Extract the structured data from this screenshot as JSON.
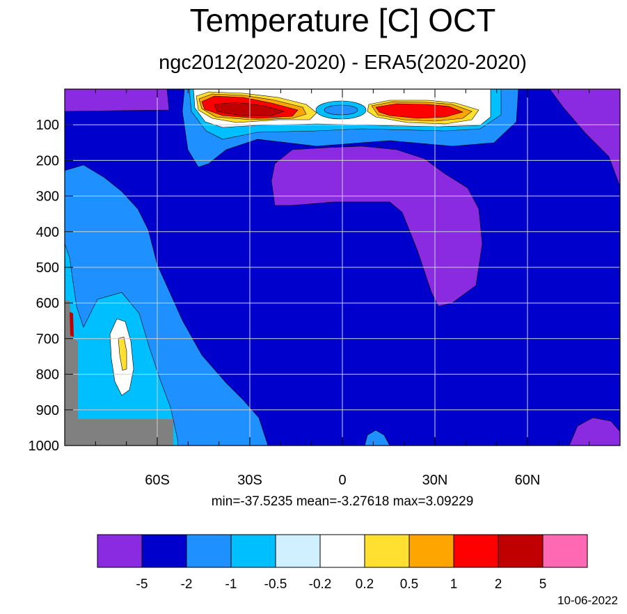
{
  "chart_data": {
    "type": "heatmap",
    "title": "Temperature [C] OCT",
    "subtitle": "ngc2012(2020-2020) - ERA5(2020-2020)",
    "stats": "min=-37.5235   mean=-3.27618   max=3.09229",
    "date": "10-06-2022",
    "x_ticks": [
      {
        "value": -60,
        "label": "60S"
      },
      {
        "value": -30,
        "label": "30S"
      },
      {
        "value": 0,
        "label": "0"
      },
      {
        "value": 30,
        "label": "30N"
      },
      {
        "value": 60,
        "label": "60N"
      }
    ],
    "y_ticks": [
      100,
      200,
      300,
      400,
      500,
      600,
      700,
      800,
      900,
      1000
    ],
    "xlim": [
      -90,
      90
    ],
    "ylim": [
      1000,
      0
    ],
    "grid": true,
    "levels": [
      "-5",
      "-2",
      "-1",
      "-0.5",
      "-0.2",
      "0.2",
      "0.5",
      "1",
      "2",
      "5"
    ],
    "colors": [
      "#8a2be2",
      "#0000cd",
      "#1e90ff",
      "#00bfff",
      "#d0f0ff",
      "#ffffff",
      "#ffe030",
      "#ffa500",
      "#ff0000",
      "#c00000",
      "#ff69b4"
    ],
    "missing_color": "#808080",
    "regions": [
      {
        "name": "base",
        "color_index": 1
      },
      {
        "name": "mid-troposphere-lt-minus-1-south",
        "color_index": 2
      },
      {
        "name": "mid-troposphere-lt-minus-0.5-south",
        "color_index": 3
      },
      {
        "name": "south-white-blob",
        "color_index": 5
      },
      {
        "name": "south-yellow-blob",
        "color_index": 6
      },
      {
        "name": "upper-purple-sw",
        "color_index": 0
      },
      {
        "name": "upper-purple-ne",
        "color_index": 0
      },
      {
        "name": "central-purple",
        "color_index": 0
      },
      {
        "name": "lower-purple-ne",
        "color_index": 0
      },
      {
        "name": "upper-bright-blue",
        "color_index": 2
      },
      {
        "name": "upper-cyan",
        "color_index": 3
      },
      {
        "name": "upper-white",
        "color_index": 5
      },
      {
        "name": "upper-yellow-s",
        "color_index": 6
      },
      {
        "name": "upper-orange-s",
        "color_index": 7
      },
      {
        "name": "upper-red-s",
        "color_index": 8
      },
      {
        "name": "upper-darkred-s",
        "color_index": 9
      },
      {
        "name": "upper-yellow-n",
        "color_index": 6
      },
      {
        "name": "upper-orange-n",
        "color_index": 7
      },
      {
        "name": "upper-red-n",
        "color_index": 8
      },
      {
        "name": "equator-cyan",
        "color_index": 3
      },
      {
        "name": "equator-blue",
        "color_index": 2
      },
      {
        "name": "surface-blue",
        "color_index": 2
      }
    ]
  }
}
